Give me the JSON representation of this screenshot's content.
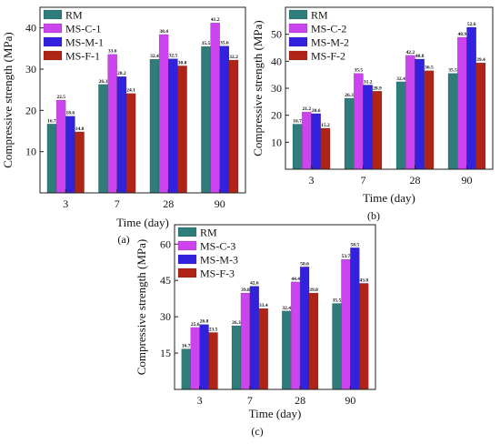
{
  "chart_data": [
    {
      "type": "bar",
      "panel": "(a)",
      "xlabel": "Time (day)",
      "ylabel": "Compressive strength (MPa)",
      "categories": [
        "3",
        "7",
        "28",
        "90"
      ],
      "ylim": [
        0,
        45
      ],
      "yticks": [
        10,
        20,
        30,
        40
      ],
      "legend": "top-left",
      "series": [
        {
          "name": "RM",
          "values": [
            16.7,
            26.3,
            32.4,
            35.5
          ],
          "labels": [
            "16.7",
            "26.3",
            "32.4",
            "35.5"
          ],
          "color": "#2e7d7b"
        },
        {
          "name": "MS-C-1",
          "values": [
            22.5,
            33.6,
            38.4,
            41.2
          ],
          "labels": [
            "22.5",
            "33.6",
            "38.4",
            "41.2"
          ],
          "color": "#cc44ee"
        },
        {
          "name": "MS-M-1",
          "values": [
            18.6,
            28.2,
            32.5,
            35.6
          ],
          "labels": [
            "18.6",
            "28.2",
            "32.5",
            "35.6"
          ],
          "color": "#3322dd"
        },
        {
          "name": "MS-F-1",
          "values": [
            14.8,
            24.1,
            30.8,
            32.2
          ],
          "labels": [
            "14.8",
            "24.1",
            "30.8",
            "32.2"
          ],
          "color": "#b02418"
        }
      ]
    },
    {
      "type": "bar",
      "panel": "(b)",
      "xlabel": "Time (day)",
      "ylabel": "Compressive strength (MPa)",
      "categories": [
        "3",
        "7",
        "28",
        "90"
      ],
      "ylim": [
        0,
        60
      ],
      "yticks": [
        10,
        20,
        30,
        40,
        50
      ],
      "legend": "top-left",
      "series": [
        {
          "name": "RM",
          "values": [
            16.7,
            26.3,
            32.4,
            35.5
          ],
          "labels": [
            "16.7",
            "26.3",
            "32.4",
            "35.5"
          ],
          "color": "#2e7d7b"
        },
        {
          "name": "MS-C-2",
          "values": [
            21.2,
            35.5,
            42.2,
            48.9
          ],
          "labels": [
            "21.2",
            "35.5",
            "42.2",
            "48.9"
          ],
          "color": "#cc44ee"
        },
        {
          "name": "MS-M-2",
          "values": [
            20.6,
            31.2,
            40.8,
            52.6
          ],
          "labels": [
            "20.6",
            "31.2",
            "40.8",
            "52.6"
          ],
          "color": "#3322dd"
        },
        {
          "name": "MS-F-2",
          "values": [
            15.2,
            28.9,
            36.5,
            39.4
          ],
          "labels": [
            "15.2",
            "28.9",
            "36.5",
            "39.4"
          ],
          "color": "#b02418"
        }
      ]
    },
    {
      "type": "bar",
      "panel": "(c)",
      "xlabel": "Time (day)",
      "ylabel": "Compressive strength (MPa)",
      "categories": [
        "3",
        "7",
        "28",
        "90"
      ],
      "ylim": [
        0,
        68
      ],
      "yticks": [
        15,
        30,
        45,
        60
      ],
      "legend": "top-left",
      "series": [
        {
          "name": "RM",
          "values": [
            16.7,
            26.3,
            32.4,
            35.5
          ],
          "labels": [
            "16.7",
            "26.3",
            "32.4",
            "35.5"
          ],
          "color": "#2e7d7b"
        },
        {
          "name": "MS-C-3",
          "values": [
            25.6,
            39.8,
            44.4,
            53.7
          ],
          "labels": [
            "25.6",
            "39.8",
            "44.4",
            "53.7"
          ],
          "color": "#cc44ee"
        },
        {
          "name": "MS-M-3",
          "values": [
            26.8,
            42.6,
            50.6,
            58.5
          ],
          "labels": [
            "26.8",
            "42.6",
            "50.6",
            "58.5"
          ],
          "color": "#3322dd"
        },
        {
          "name": "MS-F-3",
          "values": [
            23.5,
            33.4,
            39.8,
            43.8
          ],
          "labels": [
            "23.5",
            "33.4",
            "39.8",
            "43.8"
          ],
          "color": "#b02418"
        }
      ]
    }
  ]
}
